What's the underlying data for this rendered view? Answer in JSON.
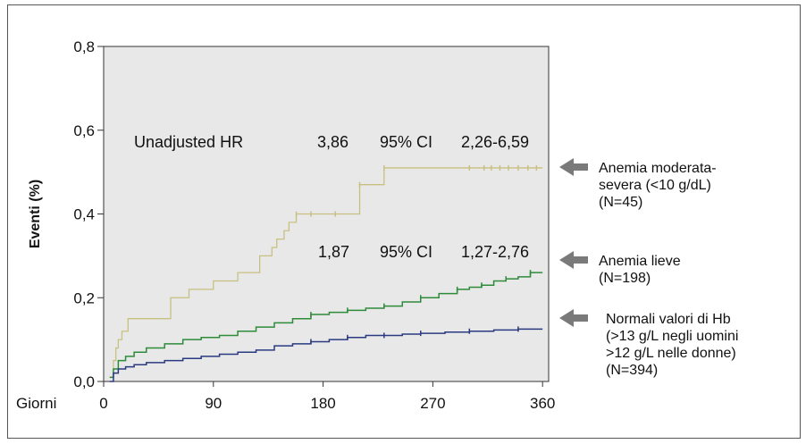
{
  "chart_data": {
    "type": "line",
    "xlabel": "Giorni",
    "ylabel": "Eventi (%)",
    "xlim": [
      0,
      365
    ],
    "ylim": [
      0,
      0.8
    ],
    "x_ticks": [
      "0",
      "90",
      "180",
      "270",
      "360"
    ],
    "x_tick_values": [
      0,
      90,
      180,
      270,
      360
    ],
    "y_ticks": [
      "0,0",
      "0,2",
      "0,4",
      "0,6",
      "0,8"
    ],
    "y_tick_values": [
      0,
      0.2,
      0.4,
      0.6,
      0.8
    ],
    "grid": false,
    "plot_background": "#e8e8e8",
    "series": [
      {
        "name": "Anemia moderata-severa (<10 g/dL) (N=45)",
        "color": "#c8c080",
        "x": [
          5,
          8,
          10,
          12,
          15,
          20,
          30,
          40,
          55,
          55,
          70,
          90,
          110,
          110,
          128,
          128,
          138,
          142,
          148,
          152,
          158,
          163,
          170,
          175,
          190,
          210,
          210,
          225,
          230,
          360
        ],
        "y": [
          0.01,
          0.05,
          0.08,
          0.1,
          0.12,
          0.15,
          0.15,
          0.15,
          0.15,
          0.2,
          0.22,
          0.24,
          0.24,
          0.26,
          0.28,
          0.3,
          0.32,
          0.34,
          0.36,
          0.38,
          0.4,
          0.4,
          0.4,
          0.4,
          0.4,
          0.4,
          0.47,
          0.47,
          0.51,
          0.51
        ]
      },
      {
        "name": "Anemia lieve (N=198)",
        "color": "#2e8b3a",
        "x": [
          5,
          8,
          12,
          18,
          25,
          35,
          50,
          65,
          80,
          95,
          110,
          125,
          140,
          155,
          170,
          185,
          200,
          215,
          230,
          245,
          260,
          275,
          290,
          300,
          310,
          320,
          330,
          340,
          350,
          360
        ],
        "y": [
          0.01,
          0.03,
          0.05,
          0.06,
          0.07,
          0.08,
          0.09,
          0.1,
          0.105,
          0.11,
          0.12,
          0.13,
          0.14,
          0.15,
          0.16,
          0.165,
          0.17,
          0.175,
          0.18,
          0.19,
          0.2,
          0.21,
          0.22,
          0.225,
          0.23,
          0.24,
          0.245,
          0.25,
          0.26,
          0.26
        ]
      },
      {
        "name": "Normali valori di Hb (>13 g/L negli uomini >12 g/L nelle donne) (N=394)",
        "color": "#2a3a80",
        "x": [
          5,
          8,
          12,
          18,
          25,
          35,
          50,
          65,
          80,
          95,
          110,
          125,
          140,
          155,
          170,
          185,
          200,
          215,
          230,
          245,
          260,
          280,
          300,
          320,
          340,
          360
        ],
        "y": [
          0.0,
          0.02,
          0.03,
          0.035,
          0.04,
          0.045,
          0.05,
          0.055,
          0.06,
          0.065,
          0.07,
          0.075,
          0.085,
          0.09,
          0.095,
          0.1,
          0.105,
          0.11,
          0.11,
          0.113,
          0.115,
          0.118,
          0.12,
          0.123,
          0.125,
          0.125
        ]
      }
    ],
    "annotations": [
      {
        "label": "Unadjusted HR",
        "x": 0,
        "y": 0.58
      },
      {
        "label": "3,86",
        "x": 0,
        "y": 0.58
      },
      {
        "label": "95% CI",
        "x": 0,
        "y": 0.58
      },
      {
        "label": "2,26-6,59",
        "x": 0,
        "y": 0.58
      },
      {
        "label": "1,87",
        "x": 0,
        "y": 0.3
      },
      {
        "label": "95% CI",
        "x": 0,
        "y": 0.3
      },
      {
        "label": "1,27-2,76",
        "x": 0,
        "y": 0.3
      }
    ],
    "legend": [
      {
        "lines": [
          "Anemia moderata-",
          "severa (<10 g/dL)",
          "(N=45)"
        ]
      },
      {
        "lines": [
          "Anemia lieve",
          "(N=198)"
        ]
      },
      {
        "lines": [
          "Normali valori di Hb",
          "(>13 g/L negli uomini",
          " >12 g/L nelle donne)",
          "(N=394)"
        ]
      }
    ],
    "legend_position": "right",
    "arrow_color": "#7a7a7a"
  }
}
